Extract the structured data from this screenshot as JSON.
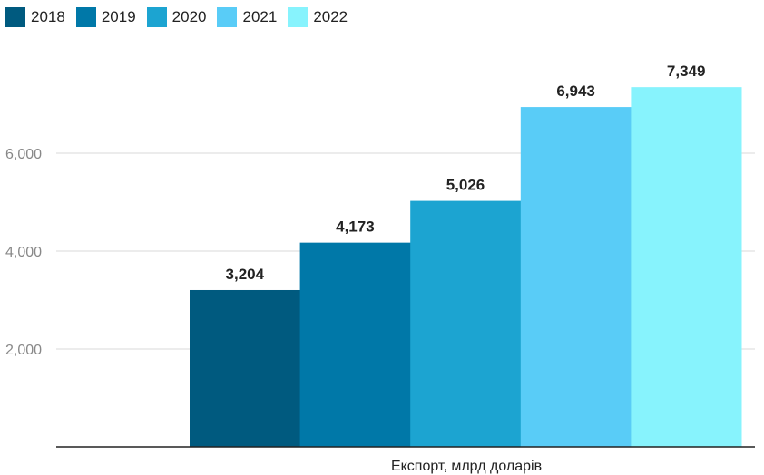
{
  "chart_data": {
    "type": "bar",
    "categories": [
      "Експорт, млрд доларів"
    ],
    "xlabel": "Експорт, млрд доларів",
    "series": [
      {
        "name": "2018",
        "values": [
          3204
        ],
        "value_label": "3,204",
        "color": "#005a7f"
      },
      {
        "name": "2019",
        "values": [
          4173
        ],
        "value_label": "4,173",
        "color": "#0078a8"
      },
      {
        "name": "2020",
        "values": [
          5026
        ],
        "value_label": "5,026",
        "color": "#1ca4d1"
      },
      {
        "name": "2021",
        "values": [
          6943
        ],
        "value_label": "6,943",
        "color": "#59ccf7"
      },
      {
        "name": "2022",
        "values": [
          7349
        ],
        "value_label": "7,349",
        "color": "#87f3fd"
      }
    ],
    "y_ticks": [
      {
        "value": 2000,
        "label": "2,000"
      },
      {
        "value": 4000,
        "label": "4,000"
      },
      {
        "value": 6000,
        "label": "6,000"
      }
    ],
    "ylim": [
      0,
      8000
    ],
    "grid": true,
    "legend_position": "top-left"
  }
}
